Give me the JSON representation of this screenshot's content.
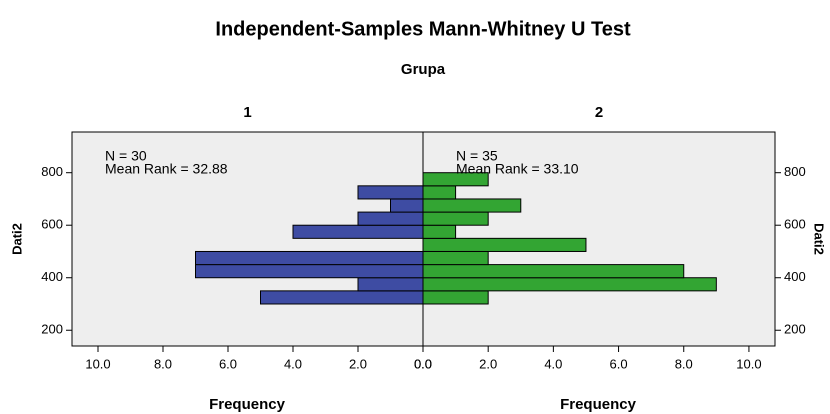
{
  "chart_data": {
    "type": "histogram",
    "title": "Independent-Samples Mann-Whitney U Test",
    "group_label": "Grupa",
    "xlabel": "Frequency",
    "ylabel": "Dati2",
    "orientation": "horizontal",
    "bins": [
      300,
      350,
      400,
      450,
      500,
      550,
      600,
      650,
      700,
      750,
      800
    ],
    "series": [
      {
        "name": "1",
        "color": "#3e4ca3",
        "values": [
          5,
          2,
          7,
          7,
          0,
          4,
          2,
          1,
          2,
          0
        ],
        "annotations": [
          "N = 30",
          "Mean Rank = 32.88"
        ]
      },
      {
        "name": "2",
        "color": "#33a533",
        "values": [
          2,
          9,
          8,
          2,
          5,
          1,
          2,
          3,
          1,
          2
        ],
        "annotations": [
          "N = 35",
          "Mean Rank = 33.10"
        ]
      }
    ],
    "xlim": [
      0,
      10.8
    ],
    "xticks": [
      {
        "value": 0,
        "label": "0.0"
      },
      {
        "value": 2,
        "label": "2.0"
      },
      {
        "value": 4,
        "label": "4.0"
      },
      {
        "value": 6,
        "label": "6.0"
      },
      {
        "value": 8,
        "label": "8.0"
      },
      {
        "value": 10,
        "label": "10.0"
      }
    ],
    "ylim": [
      140,
      955
    ],
    "yticks": [
      200,
      400,
      600,
      800
    ]
  }
}
